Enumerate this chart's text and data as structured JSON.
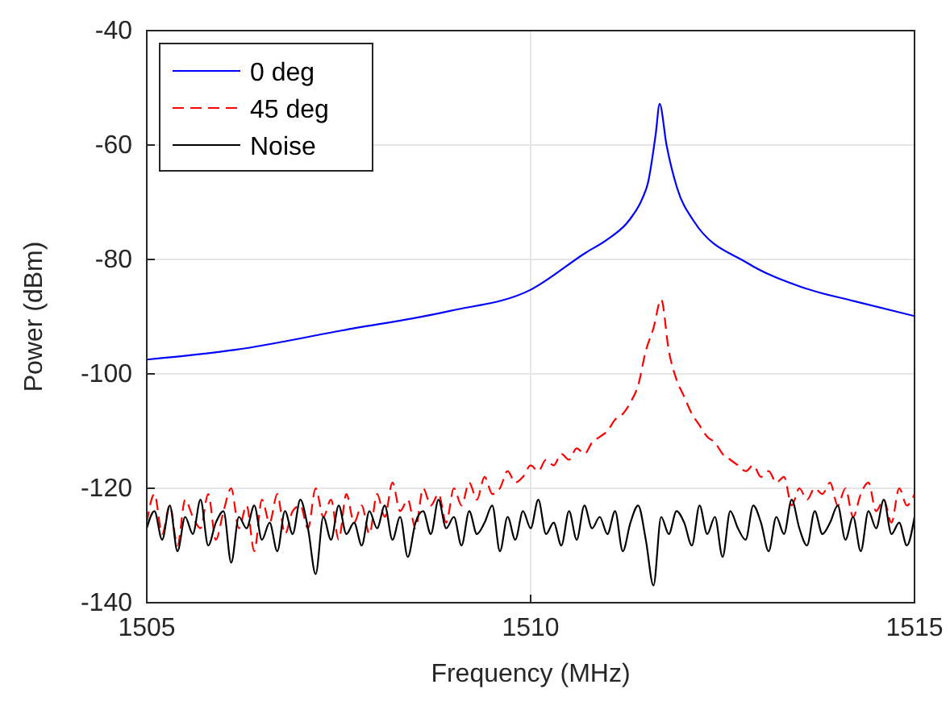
{
  "chart_data": {
    "type": "line",
    "xlabel": "Frequency (MHz)",
    "ylabel": "Power (dBm)",
    "xlim": [
      1505,
      1515
    ],
    "xticks": [
      1505,
      1510,
      1515
    ],
    "ylim": [
      -140,
      -40
    ],
    "yticks": [
      -140,
      -120,
      -100,
      -80,
      -60,
      -40
    ],
    "grid": true,
    "legend": "top left",
    "series": [
      {
        "name": "0 deg",
        "color": "#0000ff",
        "line_style": "solid",
        "x": [
          1505,
          1506.15,
          1507.55,
          1508.95,
          1510,
          1510.72,
          1511,
          1511.28,
          1511.45,
          1511.53,
          1511.63,
          1511.68,
          1511.77,
          1511.91,
          1512.12,
          1512.82,
          1513.52,
          1514.22,
          1515
        ],
        "values": [
          -97.5,
          -95.8,
          -92.4,
          -89,
          -85.3,
          -78.8,
          -76.5,
          -73.2,
          -69.5,
          -66.5,
          -58,
          -52.8,
          -60,
          -67.6,
          -73.2,
          -80.6,
          -84.8,
          -87.3,
          -89.9
        ]
      },
      {
        "name": "45 deg",
        "color": "#ff0000",
        "line_style": "dashed",
        "values": [
          -126,
          -121,
          -128,
          -123,
          -130,
          -122,
          -125,
          -127,
          -121,
          -129,
          -124,
          -120,
          -127,
          -123,
          -131,
          -122,
          -126,
          -121,
          -128,
          -124,
          -123,
          -127,
          -120,
          -125,
          -122,
          -129,
          -121,
          -126,
          -123,
          -128,
          -121,
          -125,
          -119,
          -124,
          -122,
          -127,
          -120,
          -123,
          -121,
          -126,
          -120,
          -123,
          -119,
          -122,
          -118,
          -121,
          -120,
          -117,
          -119,
          -118,
          -116,
          -117,
          -115,
          -116,
          -114,
          -115,
          -113,
          -114,
          -112,
          -111,
          -110,
          -108,
          -107,
          -105,
          -102,
          -96,
          -92,
          -87,
          -96,
          -101,
          -104,
          -107,
          -109,
          -111,
          -112,
          -114,
          -115,
          -116,
          -117,
          -116,
          -118,
          -117,
          -119,
          -118,
          -123,
          -120,
          -122,
          -120,
          -121,
          -119,
          -123,
          -120,
          -125,
          -121,
          -119,
          -124,
          -122,
          -126,
          -120,
          -123,
          -121
        ]
      },
      {
        "name": "Noise",
        "color": "#000000",
        "line_style": "solid",
        "values": [
          -127,
          -124,
          -129,
          -123,
          -131,
          -125,
          -128,
          -122,
          -130,
          -126,
          -124,
          -133,
          -125,
          -127,
          -123,
          -129,
          -126,
          -131,
          -124,
          -128,
          -122,
          -127,
          -135,
          -125,
          -129,
          -123,
          -128,
          -126,
          -130,
          -124,
          -127,
          -123,
          -129,
          -125,
          -132,
          -126,
          -124,
          -128,
          -122,
          -127,
          -125,
          -130,
          -124,
          -128,
          -126,
          -123,
          -131,
          -125,
          -129,
          -124,
          -127,
          -122,
          -128,
          -126,
          -130,
          -124,
          -129,
          -123,
          -127,
          -125,
          -128,
          -124,
          -131,
          -126,
          -123,
          -129,
          -137,
          -125,
          -128,
          -124,
          -126,
          -130,
          -123,
          -128,
          -125,
          -132,
          -124,
          -127,
          -129,
          -123,
          -126,
          -131,
          -125,
          -128,
          -122,
          -127,
          -130,
          -124,
          -128,
          -126,
          -123,
          -129,
          -125,
          -131,
          -124,
          -127,
          -122,
          -128,
          -126,
          -130,
          -125
        ]
      }
    ],
    "x": [
      1505,
      1505.1,
      1505.2,
      1505.3,
      1505.4,
      1505.5,
      1505.6,
      1505.7,
      1505.8,
      1505.9,
      1506,
      1506.1,
      1506.2,
      1506.3,
      1506.4,
      1506.5,
      1506.6,
      1506.7,
      1506.8,
      1506.9,
      1507,
      1507.1,
      1507.2,
      1507.3,
      1507.4,
      1507.5,
      1507.6,
      1507.7,
      1507.8,
      1507.9,
      1508,
      1508.1,
      1508.2,
      1508.3,
      1508.4,
      1508.5,
      1508.6,
      1508.7,
      1508.8,
      1508.9,
      1509,
      1509.1,
      1509.2,
      1509.3,
      1509.4,
      1509.5,
      1509.6,
      1509.7,
      1509.8,
      1509.9,
      1510,
      1510.1,
      1510.2,
      1510.3,
      1510.4,
      1510.5,
      1510.6,
      1510.7,
      1510.8,
      1510.9,
      1511,
      1511.1,
      1511.2,
      1511.3,
      1511.4,
      1511.5,
      1511.6,
      1511.7,
      1511.8,
      1511.9,
      1512,
      1512.1,
      1512.2,
      1512.3,
      1512.4,
      1512.5,
      1512.6,
      1512.7,
      1512.8,
      1512.9,
      1513,
      1513.1,
      1513.2,
      1513.3,
      1513.4,
      1513.5,
      1513.6,
      1513.7,
      1513.8,
      1513.9,
      1514,
      1514.1,
      1514.2,
      1514.3,
      1514.4,
      1514.5,
      1514.6,
      1514.7,
      1514.8,
      1514.9,
      1515
    ]
  }
}
